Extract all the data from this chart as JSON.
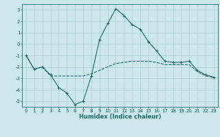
{
  "title": "",
  "xlabel": "Humidex (Indice chaleur)",
  "background_color": "#cce8ec",
  "grid_color": "#aacdd4",
  "line_color": "#1a6b6b",
  "xlim": [
    -0.5,
    23.5
  ],
  "ylim": [
    -5.5,
    3.5
  ],
  "xticks": [
    0,
    1,
    2,
    3,
    4,
    5,
    6,
    7,
    8,
    9,
    10,
    11,
    12,
    13,
    14,
    15,
    16,
    17,
    18,
    19,
    20,
    21,
    22,
    23
  ],
  "yticks": [
    -5,
    -4,
    -3,
    -2,
    -1,
    0,
    1,
    2,
    3
  ],
  "line1_x": [
    0,
    1,
    2,
    3,
    4,
    5,
    6,
    7,
    8,
    9,
    10,
    11,
    12,
    13,
    14,
    15,
    16,
    17,
    18,
    19,
    20,
    21,
    22,
    23
  ],
  "line1_y": [
    -1.0,
    -2.2,
    -2.0,
    -2.7,
    -3.8,
    -4.3,
    -5.3,
    -5.0,
    -2.8,
    0.4,
    1.8,
    3.1,
    2.5,
    1.7,
    1.3,
    0.2,
    -0.6,
    -1.5,
    -1.6,
    -1.6,
    -1.5,
    -2.3,
    -2.7,
    -2.9
  ],
  "line2_x": [
    0,
    1,
    2,
    3,
    4,
    5,
    6,
    7,
    8,
    9,
    10,
    11,
    12,
    13,
    14,
    15,
    16,
    17,
    18,
    19,
    20,
    21,
    22,
    23
  ],
  "line2_y": [
    -1.0,
    -2.2,
    -2.0,
    -2.8,
    -2.8,
    -2.8,
    -2.8,
    -2.8,
    -2.6,
    -2.3,
    -2.0,
    -1.7,
    -1.6,
    -1.5,
    -1.5,
    -1.5,
    -1.6,
    -1.8,
    -1.8,
    -1.8,
    -1.8,
    -2.4,
    -2.8,
    -2.9
  ],
  "figsize": [
    3.2,
    2.0
  ],
  "dpi": 100,
  "tick_fontsize": 5,
  "xlabel_fontsize": 6,
  "linewidth": 0.8,
  "marker_size": 3
}
